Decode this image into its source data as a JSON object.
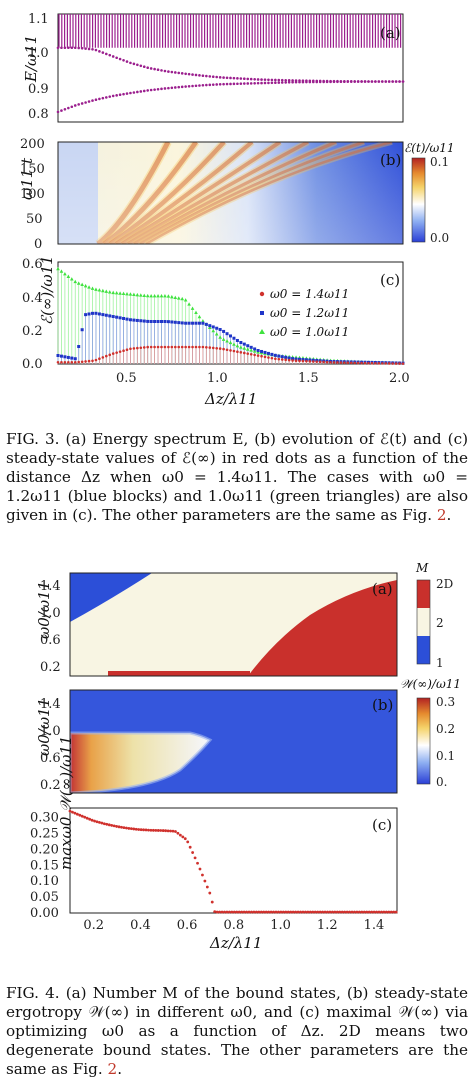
{
  "figure3": {
    "panel_a": {
      "label": "(a)",
      "ylabel": "E/ω11",
      "yticks": [
        "0.8",
        "0.9",
        "1.0",
        "1.1"
      ]
    },
    "panel_b": {
      "label": "(b)",
      "ylabel": "ω11 t",
      "yticks": [
        "0",
        "50",
        "100",
        "150",
        "200"
      ],
      "colorbar_title": "ℰ(t)/ω11",
      "colorbar_ticks": [
        "0.1",
        "0.0"
      ]
    },
    "panel_c": {
      "label": "(c)",
      "ylabel": "ℰ(∞)/ω11",
      "yticks": [
        "0.0",
        "0.2",
        "0.4",
        "0.6"
      ],
      "xticks": [
        "0.5",
        "1.0",
        "1.5",
        "2.0"
      ],
      "xlabel": "Δz/λ11",
      "legend": [
        "ω0 = 1.4ω11",
        "ω0 = 1.2ω11",
        "ω0 = 1.0ω11"
      ]
    },
    "caption": "FIG. 3. (a) Energy spectrum E, (b) evolution of ℰ(t) and (c) steady-state values of ℰ(∞) in red dots as a function of the distance Δz when ω0 = 1.4ω11. The cases with ω0 = 1.2ω11 (blue blocks) and 1.0ω11 (green triangles) are also given in (c). The other parameters are the same as Fig. ",
    "caption_ref": "2",
    "caption_end": "."
  },
  "figure4": {
    "panel_a": {
      "label": "(a)",
      "ylabel": "ω0/ω11",
      "yticks": [
        "0.2",
        "0.6",
        "1.0",
        "1.4"
      ],
      "colorbar_title": "M",
      "colorbar_ticks": [
        "2D",
        "2",
        "1"
      ]
    },
    "panel_b": {
      "label": "(b)",
      "ylabel": "ω0/ω11",
      "yticks": [
        "0.2",
        "0.6",
        "1.0",
        "1.4"
      ],
      "colorbar_title": "𝒲(∞)/ω11",
      "colorbar_ticks": [
        "0.3",
        "0.2",
        "0.1",
        "0."
      ]
    },
    "panel_c": {
      "label": "(c)",
      "ylabel": "maxω0 𝒲(∞)/ω11",
      "yticks": [
        "0.00",
        "0.05",
        "0.10",
        "0.15",
        "0.20",
        "0.25",
        "0.30"
      ],
      "xticks": [
        "0.2",
        "0.4",
        "0.6",
        "0.8",
        "1.0",
        "1.2",
        "1.4"
      ],
      "xlabel": "Δz/λ11"
    },
    "caption": "FIG. 4. (a) Number M of the bound states, (b) steady-state ergotropy 𝒲(∞) in different ω0, and (c) maximal 𝒲(∞) via optimizing ω0 as a function of Δz. 2D means two degenerate bound states. The other parameters are the same as Fig. ",
    "caption_ref": "2",
    "caption_end": "."
  },
  "colors": {
    "purple": "#9b1f8e",
    "red": "#d0312d",
    "blue": "#1f35c8",
    "green": "#3fe23f",
    "cream": "#f8f5e3",
    "region_blue": "#2c4fd8",
    "region_red": "#c9302c"
  },
  "chart_data": [
    {
      "type": "scatter",
      "panel": "fig3a",
      "xlim": [
        0.1,
        2.0
      ],
      "ylim": [
        0.78,
        1.1
      ],
      "series": [
        {
          "x": [
            0.1,
            0.2,
            0.3,
            0.4,
            0.5,
            0.6,
            0.7,
            0.8,
            0.9,
            1.0,
            1.2,
            1.4,
            1.6,
            1.8,
            2.0
          ],
          "y": [
            1.0,
            1.0,
            0.995,
            0.975,
            0.955,
            0.94,
            0.93,
            0.923,
            0.917,
            0.912,
            0.906,
            0.903,
            0.901,
            0.9,
            0.9
          ]
        },
        {
          "x": [
            0.1,
            0.2,
            0.3,
            0.4,
            0.5,
            0.6,
            0.7,
            0.8,
            0.9,
            1.0,
            1.2,
            1.4,
            1.6,
            1.8,
            2.0
          ],
          "y": [
            0.81,
            0.83,
            0.845,
            0.857,
            0.866,
            0.874,
            0.88,
            0.885,
            0.889,
            0.892,
            0.895,
            0.898,
            0.899,
            0.9,
            0.9
          ]
        }
      ]
    },
    {
      "type": "heatmap",
      "panel": "fig3b",
      "xlim": [
        0.1,
        2.0
      ],
      "ylim": [
        0,
        200
      ],
      "colorbar_range": [
        0.0,
        0.1
      ]
    },
    {
      "type": "scatter",
      "panel": "fig3c",
      "xlim": [
        0.1,
        2.0
      ],
      "ylim": [
        0.0,
        0.6
      ],
      "series": [
        {
          "name": "ω0 = 1.4ω11",
          "x": [
            0.1,
            0.2,
            0.3,
            0.4,
            0.5,
            0.6,
            0.7,
            0.8,
            0.9,
            1.0,
            1.1,
            1.2,
            1.3,
            1.4,
            1.6,
            1.8,
            2.0
          ],
          "y": [
            0.01,
            0.01,
            0.02,
            0.06,
            0.09,
            0.1,
            0.1,
            0.1,
            0.1,
            0.09,
            0.07,
            0.05,
            0.03,
            0.02,
            0.01,
            0.005,
            0.002
          ]
        },
        {
          "name": "ω0 = 1.2ω11",
          "x": [
            0.1,
            0.2,
            0.25,
            0.3,
            0.4,
            0.5,
            0.6,
            0.7,
            0.8,
            0.9,
            1.0,
            1.1,
            1.2,
            1.3,
            1.4,
            1.6,
            1.8,
            2.0
          ],
          "y": [
            0.05,
            0.03,
            0.29,
            0.3,
            0.28,
            0.26,
            0.25,
            0.25,
            0.24,
            0.24,
            0.2,
            0.13,
            0.08,
            0.05,
            0.03,
            0.015,
            0.01,
            0.005
          ]
        },
        {
          "name": "ω0 = 1.0ω11",
          "x": [
            0.1,
            0.2,
            0.3,
            0.4,
            0.5,
            0.6,
            0.7,
            0.8,
            0.9,
            1.0,
            1.1,
            1.2,
            1.3,
            1.4,
            1.6,
            1.8,
            2.0
          ],
          "y": [
            0.56,
            0.48,
            0.44,
            0.42,
            0.41,
            0.4,
            0.4,
            0.38,
            0.25,
            0.15,
            0.1,
            0.07,
            0.05,
            0.04,
            0.02,
            0.01,
            0.005
          ]
        }
      ]
    },
    {
      "type": "heatmap",
      "panel": "fig4a",
      "xlim": [
        0.1,
        1.5
      ],
      "ylim": [
        0.1,
        1.6
      ],
      "categories": [
        "1",
        "2",
        "2D"
      ]
    },
    {
      "type": "heatmap",
      "panel": "fig4b",
      "xlim": [
        0.1,
        1.5
      ],
      "ylim": [
        0.1,
        1.6
      ],
      "colorbar_range": [
        0.0,
        0.3
      ]
    },
    {
      "type": "scatter",
      "panel": "fig4c",
      "xlim": [
        0.1,
        1.5
      ],
      "ylim": [
        0.0,
        0.33
      ],
      "x": [
        0.1,
        0.15,
        0.2,
        0.25,
        0.3,
        0.35,
        0.4,
        0.45,
        0.5,
        0.55,
        0.6,
        0.65,
        0.7,
        0.72,
        0.8,
        1.0,
        1.2,
        1.4,
        1.5
      ],
      "y": [
        0.32,
        0.305,
        0.29,
        0.28,
        0.272,
        0.266,
        0.262,
        0.26,
        0.259,
        0.257,
        0.23,
        0.15,
        0.06,
        0.003,
        0.003,
        0.003,
        0.003,
        0.003,
        0.003
      ]
    }
  ]
}
